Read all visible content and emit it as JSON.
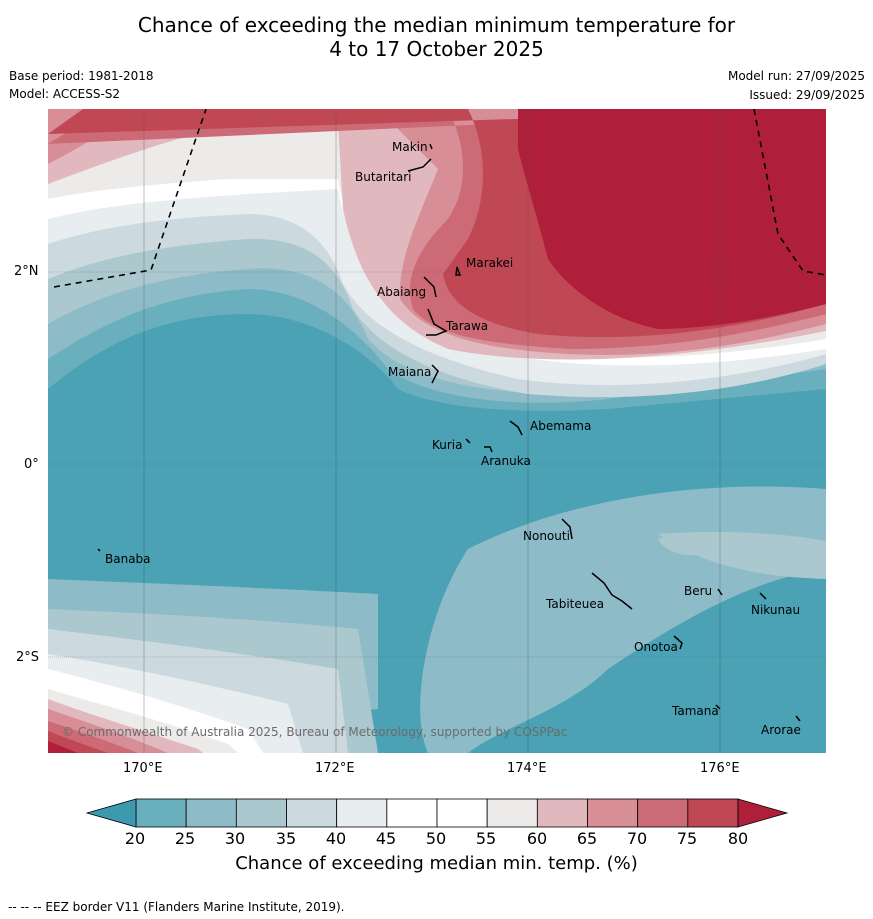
{
  "title": {
    "line1": "Chance of exceeding the median minimum temperature for",
    "line2": "4 to 17 October 2025"
  },
  "meta": {
    "base_period": "Base period: 1981-2018",
    "model": "Model: ACCESS-S2",
    "model_run": "Model run: 27/09/2025",
    "issued": "Issued: 29/09/2025"
  },
  "map": {
    "lat_labels": [
      "2°N",
      "0°",
      "2°S"
    ],
    "lon_labels": [
      "170°E",
      "172°E",
      "174°E",
      "176°E"
    ],
    "places": [
      "Makin",
      "Butaritari",
      "Marakei",
      "Abaiang",
      "Tarawa",
      "Maiana",
      "Abemama",
      "Kuria",
      "Aranuka",
      "Nonouti",
      "Banaba",
      "Tabiteuea",
      "Beru",
      "Nikunau",
      "Onotoa",
      "Tamana",
      "Arorae"
    ],
    "copyright": "© Commonwealth of Australia 2025, Bureau of Meteorology, supported by COSPPac"
  },
  "colorbar": {
    "ticks": [
      "20",
      "25",
      "30",
      "35",
      "40",
      "45",
      "50",
      "55",
      "60",
      "65",
      "70",
      "75",
      "80"
    ],
    "label": "Chance of exceeding median min. temp. (%)",
    "colors": {
      "below": "#3d9aae",
      "bins": [
        "#6aafbe",
        "#8dbcc8",
        "#abc8cf",
        "#ccdadf",
        "#e8edf0",
        "#ffffff",
        "#ffffff",
        "#ecebea",
        "#e2b8bf",
        "#d88e97",
        "#cc6b75",
        "#c04754"
      ],
      "above": "#b01f3a",
      "deep_blue": "#4aa2b4"
    }
  },
  "footer": {
    "legend": "--  --  -- EEZ border V11 (Flanders Marine Institute, 2019)."
  }
}
